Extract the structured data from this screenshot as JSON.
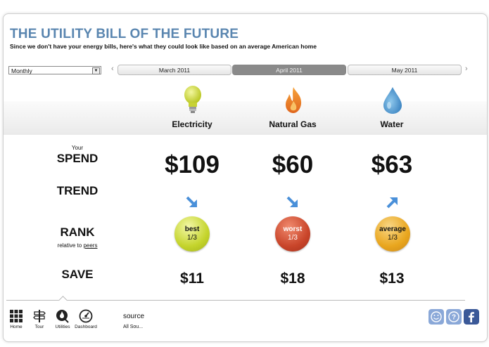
{
  "header": {
    "title": "THE UTILITY BILL OF THE FUTURE",
    "subtitle": "Since we don't have your energy bills, here's what they could look like based on an average American home"
  },
  "controls": {
    "period_select": "Monthly",
    "prev_arrow": "‹",
    "next_arrow": "›",
    "months": [
      {
        "label": "March 2011",
        "active": false
      },
      {
        "label": "April 2011",
        "active": true
      },
      {
        "label": "May 2011",
        "active": false
      }
    ]
  },
  "utilities": [
    {
      "name": "Electricity",
      "icon": "lightbulb-icon",
      "spend": "$109",
      "trend": "down",
      "rank": "best",
      "rank_fraction": "1/3",
      "save": "$11",
      "color": "#c7d72e"
    },
    {
      "name": "Natural Gas",
      "icon": "flame-icon",
      "spend": "$60",
      "trend": "down",
      "rank": "worst",
      "rank_fraction": "1/3",
      "save": "$18",
      "color": "#c9452a"
    },
    {
      "name": "Water",
      "icon": "water-drop-icon",
      "spend": "$63",
      "trend": "up",
      "rank": "average",
      "rank_fraction": "1/3",
      "save": "$13",
      "color": "#e9a61e"
    }
  ],
  "rows": {
    "spend_prefix": "Your",
    "spend": "SPEND",
    "trend": "TREND",
    "rank": "RANK",
    "rank_sub_prefix": "relative to",
    "rank_sub_link": "peers",
    "save": "SAVE"
  },
  "footer": {
    "nav": [
      {
        "label": "Home",
        "icon": "grid-icon"
      },
      {
        "label": "Tour",
        "icon": "signpost-icon"
      },
      {
        "label": "Utilities",
        "icon": "utilities-icon"
      },
      {
        "label": "Dashboard",
        "icon": "gauge-icon"
      }
    ],
    "source_title": "source",
    "source_value": "All Sou..."
  },
  "colors": {
    "title": "#5a86b0",
    "trend_arrow": "#4a90d9",
    "social": "#8aa8d8",
    "facebook": "#3b5998"
  }
}
